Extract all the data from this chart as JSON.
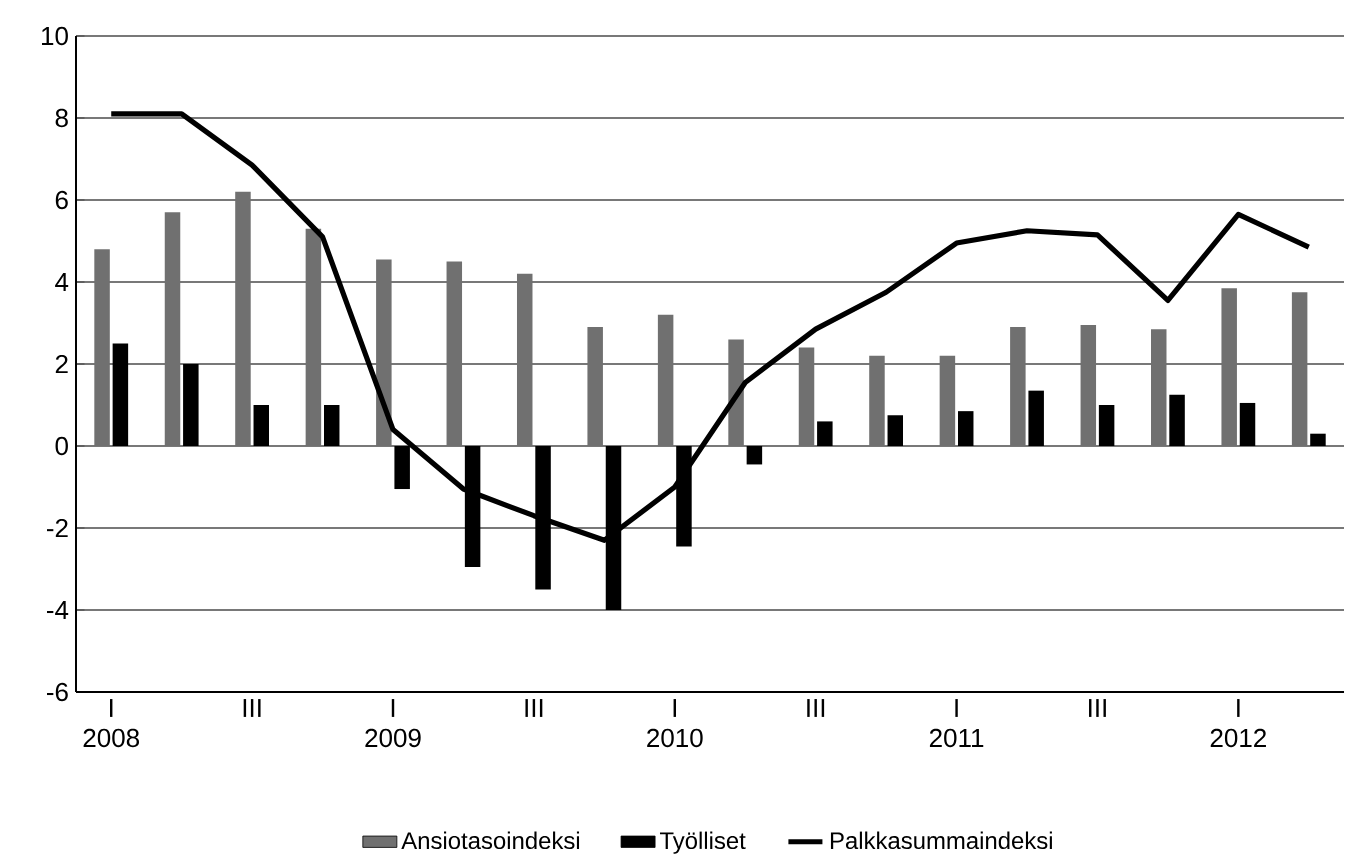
{
  "chart_data": {
    "type": "bar",
    "categories": [
      "I 2008",
      null,
      "III",
      null,
      "I 2009",
      null,
      "III",
      null,
      "I 2010",
      null,
      "III",
      null,
      "I 2011",
      null,
      "III",
      null,
      "I 2012",
      null
    ],
    "series": [
      {
        "name": "Ansiotasoindeksi",
        "color": "#707070",
        "values": [
          4.8,
          5.7,
          6.2,
          5.3,
          4.55,
          4.5,
          4.2,
          2.9,
          3.2,
          2.6,
          2.4,
          2.2,
          2.2,
          2.9,
          2.95,
          2.85,
          3.85,
          3.75
        ]
      },
      {
        "name": "Työlliset",
        "color": "#000000",
        "values": [
          2.5,
          2.0,
          1.0,
          1.0,
          -1.05,
          -2.95,
          -3.5,
          -4.0,
          -2.45,
          -0.45,
          0.6,
          0.75,
          0.85,
          1.35,
          1.0,
          1.25,
          1.05,
          0.3
        ]
      },
      {
        "name": "Palkkasummaindeksi",
        "type": "line",
        "color": "#000000",
        "values": [
          8.1,
          8.1,
          6.85,
          5.1,
          0.4,
          -1.05,
          -1.7,
          -2.3,
          -1.0,
          1.55,
          2.85,
          3.75,
          4.95,
          5.25,
          5.15,
          3.55,
          5.65,
          4.85
        ]
      }
    ],
    "ylim": [
      -6,
      10
    ],
    "yticks": [
      -6,
      -4,
      -2,
      0,
      2,
      4,
      6,
      8,
      10
    ],
    "grid": "y",
    "legend": "bottom"
  }
}
